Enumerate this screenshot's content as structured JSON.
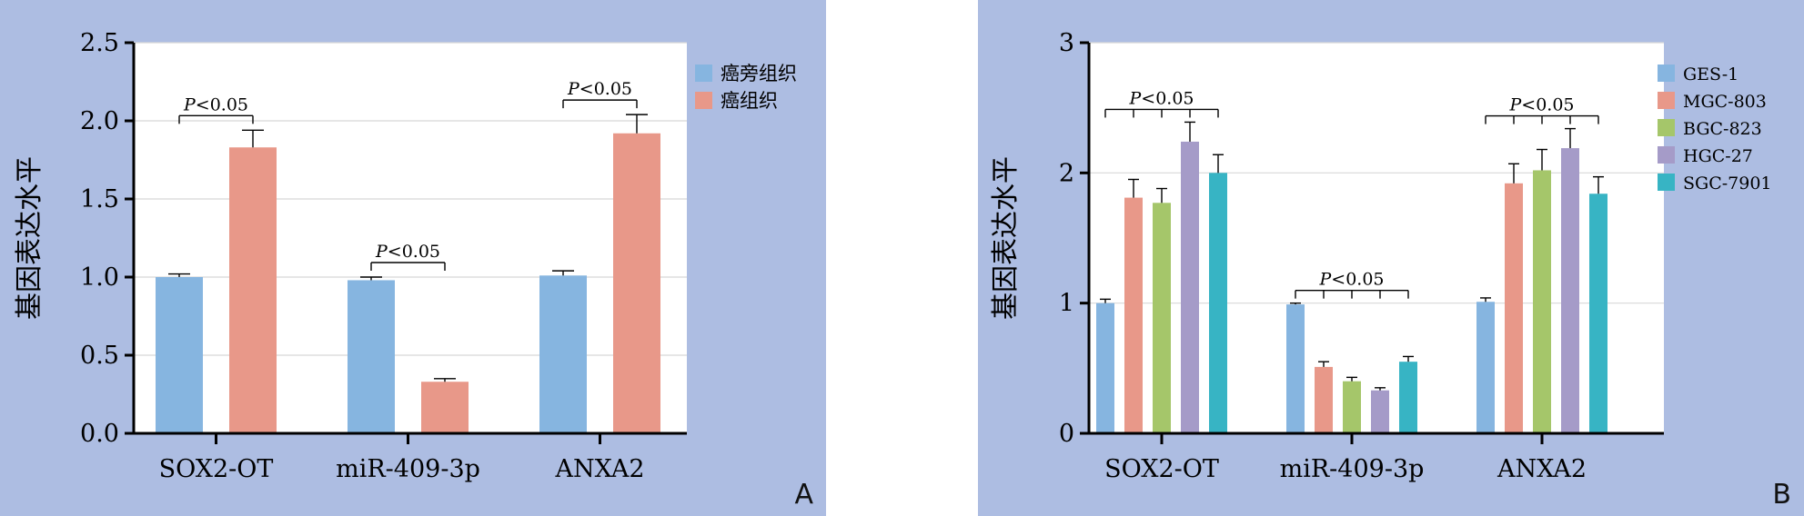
{
  "chart_data": [
    {
      "type": "bar",
      "panel_label": "A",
      "ylabel": "基因表达水平",
      "ylim": [
        0,
        2.5
      ],
      "yticks": [
        "0.0",
        "0.5",
        "1.0",
        "1.5",
        "2.0",
        "2.5"
      ],
      "ytick_values": [
        0,
        0.5,
        1.0,
        1.5,
        2.0,
        2.5
      ],
      "categories": [
        "SOX2-OT",
        "miR-409-3p",
        "ANXA2"
      ],
      "series": [
        {
          "name": "癌旁组织",
          "color": "#86b5e0",
          "values": [
            1.0,
            0.98,
            1.01
          ],
          "errors": [
            0.02,
            0.02,
            0.03
          ]
        },
        {
          "name": "癌组织",
          "color": "#e89889",
          "values": [
            1.83,
            0.33,
            1.92
          ],
          "errors": [
            0.11,
            0.02,
            0.12
          ]
        }
      ],
      "legend_position": "top-right",
      "grid": true,
      "annotations": [
        {
          "category": 0,
          "text_prefix": "P",
          "text_suffix": "<0.05"
        },
        {
          "category": 1,
          "text_prefix": "P",
          "text_suffix": "<0.05"
        },
        {
          "category": 2,
          "text_prefix": "P",
          "text_suffix": "<0.05"
        }
      ]
    },
    {
      "type": "bar",
      "panel_label": "B",
      "ylabel": "基因表达水平",
      "ylim": [
        0,
        3
      ],
      "yticks": [
        "0",
        "1",
        "2",
        "3"
      ],
      "ytick_values": [
        0,
        1,
        2,
        3
      ],
      "categories": [
        "SOX2-OT",
        "miR-409-3p",
        "ANXA2"
      ],
      "series": [
        {
          "name": "GES-1",
          "color": "#86b5e0",
          "values": [
            1.0,
            0.99,
            1.01
          ],
          "errors": [
            0.03,
            0.01,
            0.03
          ]
        },
        {
          "name": "MGC-803",
          "color": "#e89889",
          "values": [
            1.81,
            0.51,
            1.92
          ],
          "errors": [
            0.14,
            0.04,
            0.15
          ]
        },
        {
          "name": "BGC-823",
          "color": "#a5c66a",
          "values": [
            1.77,
            0.4,
            2.02
          ],
          "errors": [
            0.11,
            0.03,
            0.16
          ]
        },
        {
          "name": "HGC-27",
          "color": "#a59bc8",
          "values": [
            2.24,
            0.33,
            2.19
          ],
          "errors": [
            0.15,
            0.02,
            0.15
          ]
        },
        {
          "name": "SGC-7901",
          "color": "#37b4c4",
          "values": [
            2.0,
            0.55,
            1.84
          ],
          "errors": [
            0.14,
            0.04,
            0.13
          ]
        }
      ],
      "legend_position": "top-right",
      "grid": true,
      "annotations": [
        {
          "category": 0,
          "text_prefix": "P",
          "text_suffix": "<0.05"
        },
        {
          "category": 1,
          "text_prefix": "P",
          "text_suffix": "<0.05"
        },
        {
          "category": 2,
          "text_prefix": "P",
          "text_suffix": "<0.05"
        }
      ]
    }
  ]
}
